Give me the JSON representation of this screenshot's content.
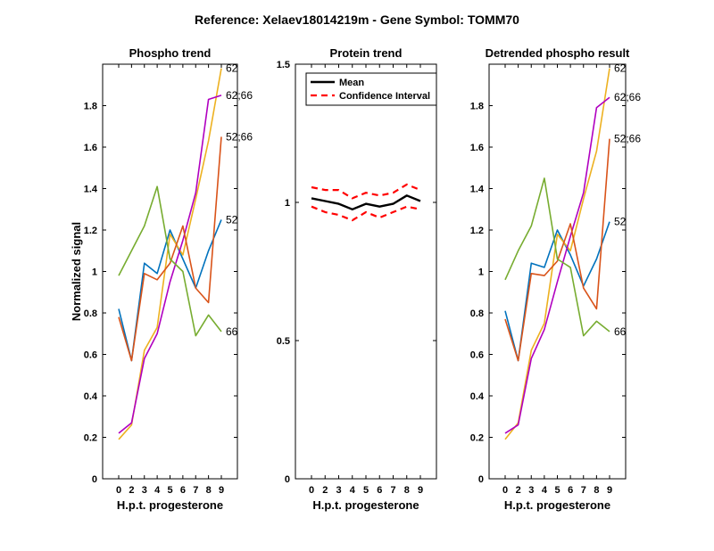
{
  "title": "Reference:  Xelaev18014219m - Gene Symbol:  TOMM70",
  "chart_data": [
    {
      "type": "line",
      "title": "Phospho trend",
      "xlabel": "H.p.t. progesterone",
      "ylabel": "Normalized signal",
      "categories": [
        "0",
        "2",
        "3",
        "4",
        "5",
        "6",
        "7",
        "8",
        "9"
      ],
      "ylim": [
        0,
        2.0
      ],
      "yticks": [
        0,
        0.2,
        0.4,
        0.6,
        0.8,
        1,
        1.2,
        1.4,
        1.6,
        1.8
      ],
      "ytick_labels": [
        "0",
        "0.2",
        "0.4",
        "0.6",
        "0.8",
        "1",
        "1.2",
        "1.4",
        "1.6",
        "1.8"
      ],
      "series": [
        {
          "name": "52",
          "color": "#0072BD",
          "values": [
            0.82,
            0.57,
            1.04,
            0.99,
            1.2,
            1.06,
            0.92,
            1.1,
            1.25
          ]
        },
        {
          "name": "62",
          "color": "#EDB120",
          "values": [
            0.19,
            0.26,
            0.62,
            0.73,
            1.18,
            1.08,
            1.35,
            1.63,
            1.98
          ]
        },
        {
          "name": "62;66",
          "color": "#B000C0",
          "values": [
            0.22,
            0.27,
            0.58,
            0.7,
            0.95,
            1.15,
            1.38,
            1.83,
            1.85
          ]
        },
        {
          "name": "52;66",
          "color": "#D95319",
          "values": [
            0.78,
            0.57,
            0.99,
            0.96,
            1.04,
            1.22,
            0.92,
            0.85,
            1.65
          ]
        },
        {
          "name": "66",
          "color": "#77AC30",
          "values": [
            0.98,
            1.1,
            1.22,
            1.41,
            1.06,
            1.0,
            0.69,
            0.79,
            0.71
          ]
        }
      ]
    },
    {
      "type": "line",
      "title": "Protein trend",
      "xlabel": "H.p.t. progesterone",
      "ylabel": "",
      "categories": [
        "0",
        "2",
        "3",
        "4",
        "5",
        "6",
        "7",
        "8",
        "9"
      ],
      "ylim": [
        0,
        1.5
      ],
      "yticks": [
        0,
        0.5,
        1,
        1.5
      ],
      "ytick_labels": [
        "0",
        "0.5",
        "1",
        "1.5"
      ],
      "series": [
        {
          "name": "Mean",
          "color": "#000000",
          "values": [
            1.015,
            1.005,
            0.995,
            0.975,
            0.995,
            0.985,
            0.995,
            1.025,
            1.005
          ]
        },
        {
          "name": "Confidence Interval (upper)",
          "color": "#FF0000",
          "values": [
            1.055,
            1.045,
            1.045,
            1.015,
            1.035,
            1.025,
            1.035,
            1.065,
            1.045
          ]
        },
        {
          "name": "Confidence Interval (lower)",
          "color": "#FF0000",
          "values": [
            0.985,
            0.965,
            0.955,
            0.935,
            0.965,
            0.945,
            0.965,
            0.985,
            0.975
          ]
        }
      ],
      "legend": {
        "placement": "top-left",
        "entries": [
          {
            "label": "Mean",
            "color": "#000000",
            "style": "solid"
          },
          {
            "label": "Confidence Interval",
            "color": "#FF0000",
            "style": "dashed"
          }
        ]
      }
    },
    {
      "type": "line",
      "title": "Detrended phospho result",
      "xlabel": "H.p.t. progesterone",
      "ylabel": "",
      "categories": [
        "0",
        "2",
        "3",
        "4",
        "5",
        "6",
        "7",
        "8",
        "9"
      ],
      "ylim": [
        0,
        2.0
      ],
      "yticks": [
        0,
        0.2,
        0.4,
        0.6,
        0.8,
        1,
        1.2,
        1.4,
        1.6,
        1.8
      ],
      "ytick_labels": [
        "0",
        "0.2",
        "0.4",
        "0.6",
        "0.8",
        "1",
        "1.2",
        "1.4",
        "1.6",
        "1.8"
      ],
      "series": [
        {
          "name": "52",
          "color": "#0072BD",
          "values": [
            0.81,
            0.57,
            1.04,
            1.02,
            1.2,
            1.08,
            0.93,
            1.06,
            1.24
          ]
        },
        {
          "name": "62",
          "color": "#EDB120",
          "values": [
            0.19,
            0.27,
            0.62,
            0.75,
            1.18,
            1.1,
            1.35,
            1.58,
            1.98
          ]
        },
        {
          "name": "62;66",
          "color": "#B000C0",
          "values": [
            0.22,
            0.26,
            0.58,
            0.72,
            0.95,
            1.17,
            1.38,
            1.79,
            1.84
          ]
        },
        {
          "name": "52;66",
          "color": "#D95319",
          "values": [
            0.77,
            0.57,
            0.99,
            0.98,
            1.05,
            1.23,
            0.92,
            0.82,
            1.64
          ]
        },
        {
          "name": "66",
          "color": "#77AC30",
          "values": [
            0.96,
            1.1,
            1.22,
            1.45,
            1.06,
            1.02,
            0.69,
            0.76,
            0.71
          ]
        }
      ]
    }
  ]
}
